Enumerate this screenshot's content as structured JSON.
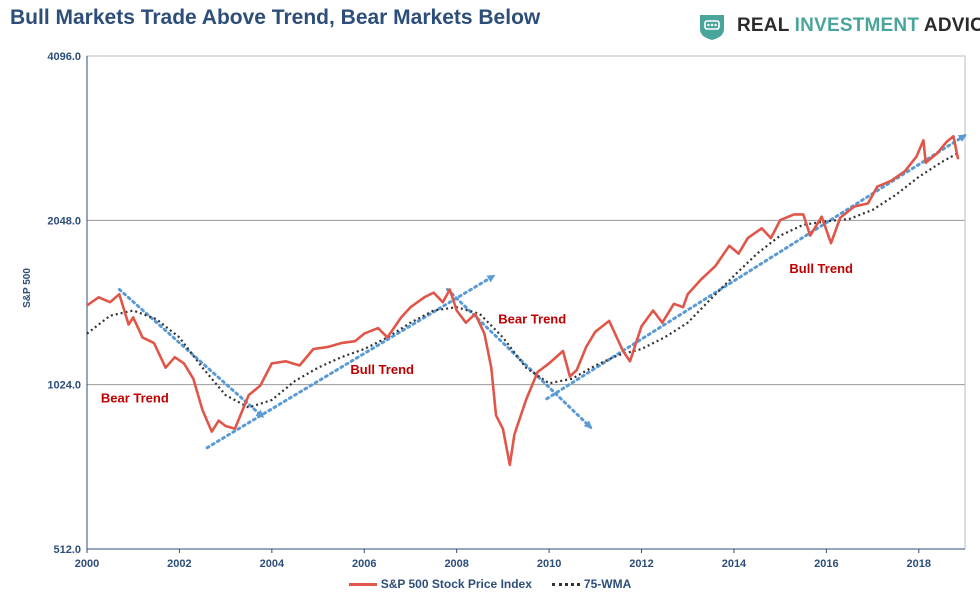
{
  "header": {
    "title": "Bull Markets Trade Above Trend, Bear Markets Below",
    "logo_main": "REAL ",
    "logo_accent": "INVESTMENT",
    "logo_tail": " ADVICE"
  },
  "colors": {
    "price": "#e0574a",
    "wma": "#333333",
    "trend": "#5b9bd5",
    "annotation": "#c00000",
    "axis_text": "#2d4e7a",
    "logo_accent": "#4aa59a"
  },
  "chart_data": {
    "type": "line",
    "title": "Bull Markets Trade Above Trend, Bear Markets Below",
    "xlabel": "",
    "ylabel": "S&P 500",
    "yscale": "log2",
    "xlim": [
      2000,
      2019
    ],
    "ylim": [
      512,
      4096
    ],
    "y_ticks": [
      512,
      1024,
      2048,
      4096
    ],
    "y_tick_labels": [
      "512.0",
      "1024.0",
      "2048.0",
      "4096.0"
    ],
    "x_ticks": [
      2000,
      2002,
      2004,
      2006,
      2008,
      2010,
      2012,
      2014,
      2016,
      2018
    ],
    "x_tick_labels": [
      "2000",
      "2002",
      "2004",
      "2006",
      "2008",
      "2010",
      "2012",
      "2014",
      "2016",
      "2018"
    ],
    "grid": true,
    "series": [
      {
        "name": "S&P 500 Stock Price Index",
        "style": "solid",
        "points": [
          [
            2000.0,
            1430
          ],
          [
            2000.25,
            1480
          ],
          [
            2000.5,
            1450
          ],
          [
            2000.7,
            1500
          ],
          [
            2000.9,
            1320
          ],
          [
            2001.0,
            1360
          ],
          [
            2001.2,
            1250
          ],
          [
            2001.45,
            1220
          ],
          [
            2001.7,
            1100
          ],
          [
            2001.9,
            1150
          ],
          [
            2002.1,
            1120
          ],
          [
            2002.3,
            1050
          ],
          [
            2002.5,
            920
          ],
          [
            2002.7,
            840
          ],
          [
            2002.85,
            880
          ],
          [
            2003.0,
            860
          ],
          [
            2003.2,
            850
          ],
          [
            2003.5,
            980
          ],
          [
            2003.75,
            1020
          ],
          [
            2004.0,
            1120
          ],
          [
            2004.3,
            1130
          ],
          [
            2004.6,
            1110
          ],
          [
            2004.9,
            1190
          ],
          [
            2005.2,
            1200
          ],
          [
            2005.5,
            1220
          ],
          [
            2005.8,
            1230
          ],
          [
            2006.0,
            1270
          ],
          [
            2006.3,
            1300
          ],
          [
            2006.5,
            1250
          ],
          [
            2006.8,
            1360
          ],
          [
            2007.0,
            1420
          ],
          [
            2007.3,
            1480
          ],
          [
            2007.5,
            1510
          ],
          [
            2007.7,
            1450
          ],
          [
            2007.85,
            1530
          ],
          [
            2008.0,
            1400
          ],
          [
            2008.2,
            1330
          ],
          [
            2008.4,
            1380
          ],
          [
            2008.6,
            1270
          ],
          [
            2008.75,
            1100
          ],
          [
            2008.85,
            900
          ],
          [
            2009.0,
            850
          ],
          [
            2009.15,
            730
          ],
          [
            2009.25,
            830
          ],
          [
            2009.5,
            960
          ],
          [
            2009.75,
            1080
          ],
          [
            2010.0,
            1120
          ],
          [
            2010.3,
            1180
          ],
          [
            2010.45,
            1060
          ],
          [
            2010.6,
            1090
          ],
          [
            2010.8,
            1200
          ],
          [
            2011.0,
            1280
          ],
          [
            2011.3,
            1340
          ],
          [
            2011.6,
            1180
          ],
          [
            2011.75,
            1130
          ],
          [
            2012.0,
            1310
          ],
          [
            2012.25,
            1400
          ],
          [
            2012.45,
            1330
          ],
          [
            2012.7,
            1440
          ],
          [
            2012.9,
            1420
          ],
          [
            2013.0,
            1500
          ],
          [
            2013.3,
            1600
          ],
          [
            2013.6,
            1690
          ],
          [
            2013.9,
            1840
          ],
          [
            2014.1,
            1780
          ],
          [
            2014.3,
            1900
          ],
          [
            2014.6,
            1980
          ],
          [
            2014.8,
            1900
          ],
          [
            2015.0,
            2050
          ],
          [
            2015.3,
            2100
          ],
          [
            2015.5,
            2100
          ],
          [
            2015.65,
            1920
          ],
          [
            2015.9,
            2080
          ],
          [
            2016.1,
            1860
          ],
          [
            2016.3,
            2070
          ],
          [
            2016.6,
            2170
          ],
          [
            2016.9,
            2200
          ],
          [
            2017.1,
            2360
          ],
          [
            2017.4,
            2420
          ],
          [
            2017.7,
            2520
          ],
          [
            2017.95,
            2680
          ],
          [
            2018.1,
            2870
          ],
          [
            2018.15,
            2610
          ],
          [
            2018.4,
            2720
          ],
          [
            2018.6,
            2850
          ],
          [
            2018.75,
            2920
          ],
          [
            2018.85,
            2650
          ]
        ]
      },
      {
        "name": "75-WMA",
        "style": "dotted",
        "points": [
          [
            2000.0,
            1270
          ],
          [
            2000.5,
            1370
          ],
          [
            2001.0,
            1400
          ],
          [
            2001.5,
            1350
          ],
          [
            2002.0,
            1250
          ],
          [
            2002.5,
            1100
          ],
          [
            2003.0,
            980
          ],
          [
            2003.5,
            930
          ],
          [
            2004.0,
            960
          ],
          [
            2004.5,
            1040
          ],
          [
            2005.0,
            1100
          ],
          [
            2005.5,
            1150
          ],
          [
            2006.0,
            1190
          ],
          [
            2006.5,
            1250
          ],
          [
            2007.0,
            1330
          ],
          [
            2007.5,
            1400
          ],
          [
            2008.0,
            1420
          ],
          [
            2008.5,
            1380
          ],
          [
            2009.0,
            1250
          ],
          [
            2009.5,
            1100
          ],
          [
            2010.0,
            1030
          ],
          [
            2010.5,
            1050
          ],
          [
            2011.0,
            1110
          ],
          [
            2011.5,
            1160
          ],
          [
            2012.0,
            1190
          ],
          [
            2012.5,
            1250
          ],
          [
            2013.0,
            1330
          ],
          [
            2013.5,
            1470
          ],
          [
            2014.0,
            1620
          ],
          [
            2014.5,
            1780
          ],
          [
            2015.0,
            1920
          ],
          [
            2015.5,
            2010
          ],
          [
            2016.0,
            2040
          ],
          [
            2016.5,
            2060
          ],
          [
            2017.0,
            2140
          ],
          [
            2017.5,
            2280
          ],
          [
            2018.0,
            2460
          ],
          [
            2018.5,
            2620
          ],
          [
            2018.85,
            2720
          ]
        ]
      }
    ],
    "trend_arrows": [
      {
        "from": [
          2000.7,
          1530
        ],
        "to": [
          2003.8,
          895
        ]
      },
      {
        "from": [
          2002.6,
          785
        ],
        "to": [
          2008.8,
          1620
        ]
      },
      {
        "from": [
          2007.8,
          1530
        ],
        "to": [
          2010.9,
          855
        ]
      },
      {
        "from": [
          2009.95,
          965
        ],
        "to": [
          2019.0,
          2930
        ]
      }
    ],
    "annotations": [
      {
        "text": "Bear Trend",
        "at": [
          2000.3,
          950
        ]
      },
      {
        "text": "Bull Trend",
        "at": [
          2005.7,
          1070
        ]
      },
      {
        "text": "Bear Trend",
        "at": [
          2008.9,
          1325
        ]
      },
      {
        "text": "Bull Trend",
        "at": [
          2015.2,
          1640
        ]
      }
    ],
    "legend_position": "bottom-center"
  },
  "legend": {
    "items": [
      {
        "label": "S&P 500 Stock Price Index"
      },
      {
        "label": "75-WMA"
      }
    ]
  }
}
